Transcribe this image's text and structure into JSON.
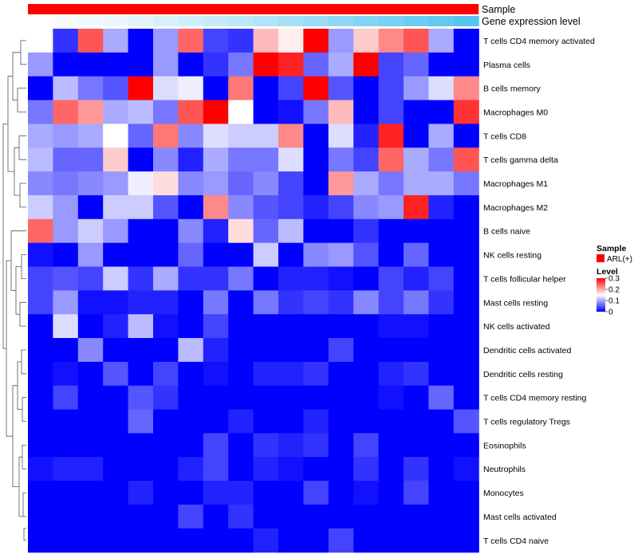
{
  "chart_data": {
    "type": "heatmap",
    "title": "",
    "annotation_tracks": [
      {
        "label": "Sample",
        "kind": "categorical",
        "color": "#ff0000"
      },
      {
        "label": "Gene expression level",
        "kind": "continuous",
        "values": [
          0.0,
          0.04,
          0.07,
          0.1,
          0.14,
          0.18,
          0.22,
          0.26,
          0.3,
          0.35,
          0.4,
          0.45,
          0.5,
          0.55,
          0.6,
          0.65,
          0.7,
          0.75
        ],
        "color_low": "#ffffff",
        "color_high": "#57c5f0"
      }
    ],
    "rows": [
      "T cells CD4 memory activated",
      "Plasma cells",
      "B cells memory",
      "Macrophages M0",
      "T cells CD8",
      "T cells gamma delta",
      "Macrophages M1",
      "Macrophages M2",
      "B cells naive",
      "NK cells resting",
      "T cells follicular helper",
      "Mast cells resting",
      "NK cells activated",
      "Dendritic cells activated",
      "Dendritic cells resting",
      "T cells CD4 memory resting",
      "T cells regulatory  Tregs",
      "Eosinophils",
      "Neutrophils",
      "Monocytes",
      "Mast cells activated",
      "T cells CD4 naive"
    ],
    "n_columns": 18,
    "values": [
      [
        0.15,
        0.03,
        0.25,
        0.1,
        0.0,
        0.09,
        0.24,
        0.04,
        0.03,
        0.19,
        0.16,
        0.3,
        0.09,
        0.18,
        0.22,
        0.25,
        0.1,
        0.0
      ],
      [
        0.09,
        0.0,
        0.0,
        0.0,
        0.0,
        0.09,
        0.0,
        0.03,
        0.07,
        0.3,
        0.28,
        0.06,
        0.1,
        0.3,
        0.04,
        0.06,
        0.0,
        0.0
      ],
      [
        0.0,
        0.11,
        0.07,
        0.05,
        0.3,
        0.13,
        0.14,
        0.0,
        0.23,
        0.0,
        0.04,
        0.3,
        0.05,
        0.0,
        0.04,
        0.09,
        0.13,
        0.22
      ],
      [
        0.07,
        0.24,
        0.21,
        0.1,
        0.11,
        0.07,
        0.25,
        0.3,
        0.15,
        0.0,
        0.01,
        0.07,
        0.19,
        0.0,
        0.04,
        0.0,
        0.0,
        0.27
      ],
      [
        0.1,
        0.09,
        0.1,
        0.15,
        0.06,
        0.23,
        0.08,
        0.13,
        0.12,
        0.12,
        0.22,
        0.0,
        0.13,
        0.02,
        0.28,
        0.0,
        0.1,
        0.0
      ],
      [
        0.11,
        0.06,
        0.06,
        0.18,
        0.0,
        0.08,
        0.02,
        0.1,
        0.07,
        0.07,
        0.13,
        0.0,
        0.07,
        0.04,
        0.24,
        0.1,
        0.07,
        0.25
      ],
      [
        0.08,
        0.07,
        0.08,
        0.09,
        0.14,
        0.17,
        0.08,
        0.09,
        0.06,
        0.08,
        0.04,
        0.0,
        0.21,
        0.1,
        0.07,
        0.1,
        0.1,
        0.07
      ],
      [
        0.12,
        0.09,
        0.0,
        0.12,
        0.12,
        0.05,
        0.0,
        0.22,
        0.08,
        0.05,
        0.04,
        0.02,
        0.04,
        0.08,
        0.09,
        0.28,
        0.02,
        0.0
      ],
      [
        0.24,
        0.09,
        0.12,
        0.09,
        0.0,
        0.0,
        0.08,
        0.02,
        0.17,
        0.06,
        0.11,
        0.0,
        0.0,
        0.03,
        0.0,
        0.0,
        0.0,
        0.0
      ],
      [
        0.01,
        0.0,
        0.09,
        0.0,
        0.0,
        0.0,
        0.06,
        0.0,
        0.0,
        0.12,
        0.0,
        0.08,
        0.09,
        0.05,
        0.0,
        0.06,
        0.0,
        0.0
      ],
      [
        0.04,
        0.05,
        0.04,
        0.12,
        0.03,
        0.1,
        0.03,
        0.03,
        0.07,
        0.0,
        0.02,
        0.02,
        0.01,
        0.0,
        0.04,
        0.02,
        0.04,
        0.0
      ],
      [
        0.04,
        0.09,
        0.01,
        0.01,
        0.02,
        0.02,
        0.0,
        0.07,
        0.0,
        0.07,
        0.03,
        0.04,
        0.03,
        0.08,
        0.04,
        0.07,
        0.03,
        0.0
      ],
      [
        0.0,
        0.13,
        0.0,
        0.02,
        0.11,
        0.01,
        0.0,
        0.04,
        0.0,
        0.0,
        0.0,
        0.0,
        0.0,
        0.0,
        0.01,
        0.01,
        0.0,
        0.0
      ],
      [
        0.0,
        0.0,
        0.08,
        0.0,
        0.0,
        0.0,
        0.11,
        0.02,
        0.0,
        0.0,
        0.0,
        0.0,
        0.04,
        0.0,
        0.0,
        0.0,
        0.0,
        0.0
      ],
      [
        0.0,
        0.01,
        0.0,
        0.05,
        0.0,
        0.04,
        0.0,
        0.01,
        0.0,
        0.02,
        0.02,
        0.03,
        0.0,
        0.0,
        0.02,
        0.03,
        0.0,
        0.0
      ],
      [
        0.0,
        0.04,
        0.0,
        0.0,
        0.05,
        0.03,
        0.0,
        0.0,
        0.0,
        0.0,
        0.0,
        0.0,
        0.0,
        0.0,
        0.01,
        0.0,
        0.06,
        0.0
      ],
      [
        0.0,
        0.0,
        0.0,
        0.0,
        0.06,
        0.0,
        0.0,
        0.0,
        0.02,
        0.0,
        0.0,
        0.02,
        0.0,
        0.0,
        0.0,
        0.0,
        0.0,
        0.05
      ],
      [
        0.0,
        0.0,
        0.0,
        0.0,
        0.0,
        0.0,
        0.0,
        0.04,
        0.0,
        0.03,
        0.02,
        0.03,
        0.0,
        0.04,
        0.0,
        0.0,
        0.0,
        0.0
      ],
      [
        0.01,
        0.02,
        0.02,
        0.0,
        0.0,
        0.0,
        0.02,
        0.04,
        0.0,
        0.02,
        0.01,
        0.0,
        0.0,
        0.03,
        0.0,
        0.03,
        0.0,
        0.01
      ],
      [
        0.0,
        0.0,
        0.0,
        0.0,
        0.02,
        0.0,
        0.0,
        0.02,
        0.02,
        0.0,
        0.0,
        0.04,
        0.0,
        0.01,
        0.0,
        0.04,
        0.0,
        0.0
      ],
      [
        0.0,
        0.0,
        0.0,
        0.0,
        0.0,
        0.0,
        0.04,
        0.0,
        0.03,
        0.0,
        0.0,
        0.0,
        0.0,
        0.0,
        0.0,
        0.0,
        0.0,
        0.0
      ],
      [
        0.0,
        0.0,
        0.0,
        0.0,
        0.0,
        0.0,
        0.0,
        0.0,
        0.0,
        0.02,
        0.0,
        0.0,
        0.04,
        0.0,
        0.0,
        0.0,
        0.0,
        0.0
      ]
    ],
    "color_scale": {
      "low": "#0000ff",
      "mid": "#ffffff",
      "high": "#ff0000",
      "min": 0,
      "mid_value": 0.15,
      "max": 0.3
    },
    "dendrogram": {
      "position": "left",
      "order": [
        0,
        1,
        2,
        3,
        4,
        5,
        6,
        7,
        8,
        9,
        10,
        11,
        12,
        13,
        14,
        15,
        16,
        17,
        18,
        19,
        20,
        21
      ]
    },
    "legend": {
      "placement": "right",
      "sample_title": "Sample",
      "sample_entry": "ARL(+)",
      "level_title": "Level",
      "level_ticks": [
        "0.3",
        "0.2",
        "0.1",
        "0"
      ],
      "level_tick_values": [
        0.3,
        0.2,
        0.1,
        0
      ]
    }
  }
}
